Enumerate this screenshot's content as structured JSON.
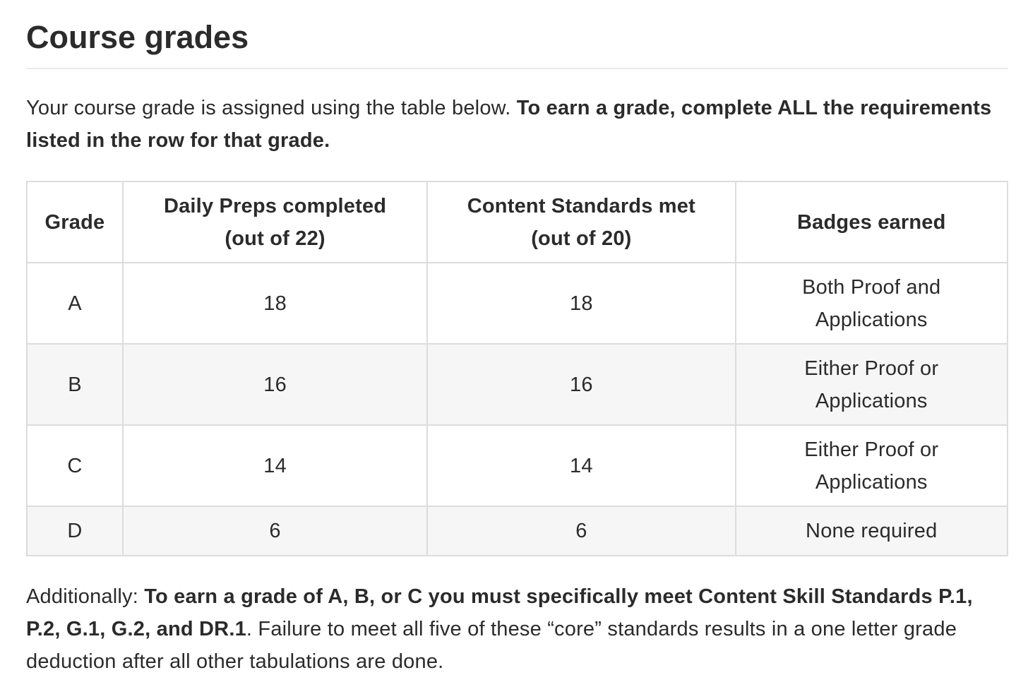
{
  "page": {
    "title": "Course grades",
    "intro_plain": "Your course grade is assigned using the table below. ",
    "intro_bold": "To earn a grade, complete ALL the requirements listed in the row for that grade."
  },
  "table": {
    "headers": {
      "grade": "Grade",
      "preps_line1": "Daily Preps completed",
      "preps_line2": "(out of 22)",
      "standards_line1": "Content Standards met",
      "standards_line2": "(out of 20)",
      "badges": "Badges earned"
    },
    "rows": [
      {
        "grade": "A",
        "preps": "18",
        "standards": "18",
        "badges_line1": "Both Proof and",
        "badges_line2": "Applications"
      },
      {
        "grade": "B",
        "preps": "16",
        "standards": "16",
        "badges_line1": "Either Proof or",
        "badges_line2": "Applications"
      },
      {
        "grade": "C",
        "preps": "14",
        "standards": "14",
        "badges_line1": "Either Proof or",
        "badges_line2": "Applications"
      },
      {
        "grade": "D",
        "preps": "6",
        "standards": "6",
        "badges_line1": "None required",
        "badges_line2": ""
      }
    ]
  },
  "note": {
    "prefix": "Additionally: ",
    "bold": "To earn a grade of A, B, or C you must specifically meet Content Skill Standards P.1, P.2, G.1, G.2, and DR.1",
    "suffix": ". Failure to meet all five of these “core” standards results in a one letter grade deduction after all other tabulations are done."
  }
}
